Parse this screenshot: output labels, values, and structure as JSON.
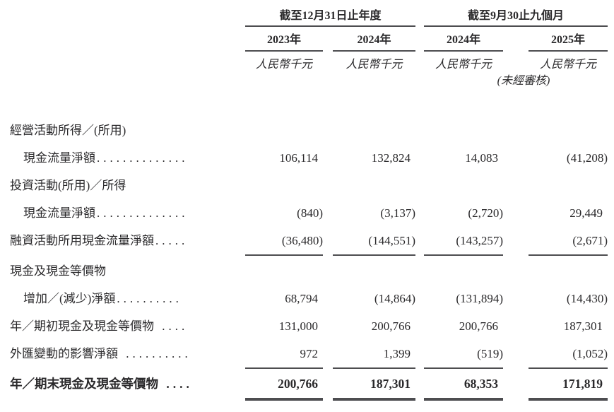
{
  "page": {
    "background": "#ffffff",
    "ink_color": "#2a292b",
    "rule_color": "#4d4d50"
  },
  "header": {
    "group1": {
      "title": "截至12月31日止年度",
      "cols": [
        "2023年",
        "2024年"
      ]
    },
    "group2": {
      "title": "截至9月30止九個月",
      "cols": [
        "2024年",
        "2025年"
      ]
    },
    "unit_label": "人民幣千元",
    "unaudited_note": "(未經審核)"
  },
  "table": {
    "column_ids": [
      "fy2023",
      "fy2024",
      "9m2024",
      "9m2025"
    ],
    "rows": [
      {
        "label": "經營活動所得／(所用)",
        "indent": 0,
        "dots": "",
        "values": [
          "",
          "",
          "",
          ""
        ]
      },
      {
        "label": "現金流量淨額",
        "indent": 1,
        "dots": "..............",
        "values": [
          "106,114",
          "132,824",
          "14,083",
          "(41,208)"
        ]
      },
      {
        "label": "投資活動(所用)／所得",
        "indent": 0,
        "dots": "",
        "values": [
          "",
          "",
          "",
          ""
        ]
      },
      {
        "label": "現金流量淨額",
        "indent": 1,
        "dots": "..............",
        "values": [
          "(840)",
          "(3,137)",
          "(2,720)",
          "29,449"
        ]
      },
      {
        "label": "融資活動所用現金流量淨額",
        "indent": 0,
        "dots": ".....",
        "values": [
          "(36,480)",
          "(144,551)",
          "(143,257)",
          "(2,671)"
        ],
        "rule_below": "single"
      },
      {
        "label": "現金及現金等價物",
        "indent": 0,
        "dots": "",
        "values": [
          "",
          "",
          "",
          ""
        ]
      },
      {
        "label": "增加／(減少)淨額",
        "indent": 1,
        "dots": "..........",
        "values": [
          "68,794",
          "(14,864)",
          "(131,894)",
          "(14,430)"
        ]
      },
      {
        "label": "年／期初現金及現金等價物",
        "indent": 0,
        "dots": " ....",
        "values": [
          "131,000",
          "200,766",
          "200,766",
          "187,301"
        ]
      },
      {
        "label": "外匯變動的影響淨額",
        "indent": 0,
        "dots": " ..........",
        "values": [
          "972",
          "1,399",
          "(519)",
          "(1,052)"
        ],
        "rule_below": "single"
      },
      {
        "label": "年／期末現金及現金等價物",
        "indent": 0,
        "dots": " ....",
        "bold": true,
        "values": [
          "200,766",
          "187,301",
          "68,353",
          "171,819"
        ],
        "rule_below": "double"
      }
    ]
  }
}
